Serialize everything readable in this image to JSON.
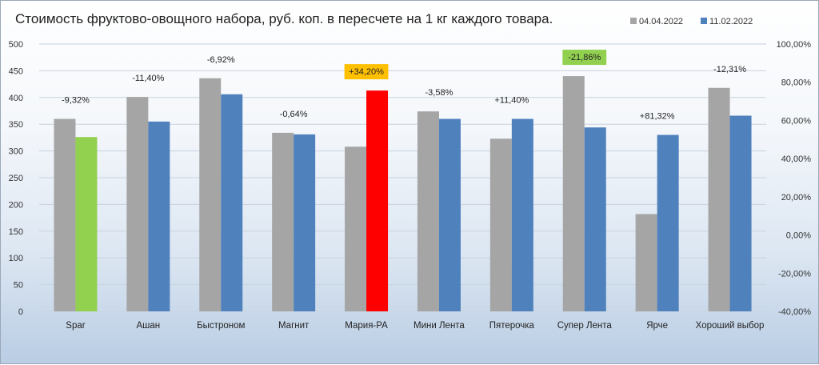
{
  "chart_data": {
    "type": "bar",
    "title": "Стоимость фруктово-овощного набора, руб. коп. в пересчете на 1 кг  каждого товара.",
    "categories": [
      "Spar",
      "Ашан",
      "Быстроном",
      "Магнит",
      "Мария-РА",
      "Мини Лента",
      "Пятерочка",
      "Супер Лента",
      "Ярче",
      "Хороший выбор"
    ],
    "series": [
      {
        "name": "04.04.2022",
        "color": "#a5a5a5",
        "values": [
          360,
          401,
          436,
          334,
          308,
          374,
          323,
          440,
          182,
          418
        ]
      },
      {
        "name": "11.02.2022",
        "color": "#4f81bd",
        "values": [
          326,
          355,
          406,
          331,
          413,
          360,
          360,
          344,
          330,
          366
        ]
      }
    ],
    "highlight_colors": {
      "Spar": "#92d050",
      "Мария-РА": "#ff0000"
    },
    "percent_changes": [
      "-9,32%",
      "-11,40%",
      "-6,92%",
      "-0,64%",
      "+34,20%",
      "-3,58%",
      "+11,40%",
      "-21,86%",
      "+81,32%",
      "-12,31%"
    ],
    "label_highlights": {
      "Мария-РА": "#ffc000",
      "Супер Лента": "#92d050"
    },
    "ylim": [
      0,
      500
    ],
    "y_ticks": [
      "0",
      "50",
      "100",
      "150",
      "200",
      "250",
      "300",
      "350",
      "400",
      "450",
      "500"
    ],
    "y2lim": [
      -0.4,
      1.0
    ],
    "y2_ticks": [
      "-40,00%",
      "-20,00%",
      "0,00%",
      "20,00%",
      "40,00%",
      "60,00%",
      "80,00%",
      "100,00%"
    ],
    "grid": true,
    "legend_position": "top-right"
  }
}
